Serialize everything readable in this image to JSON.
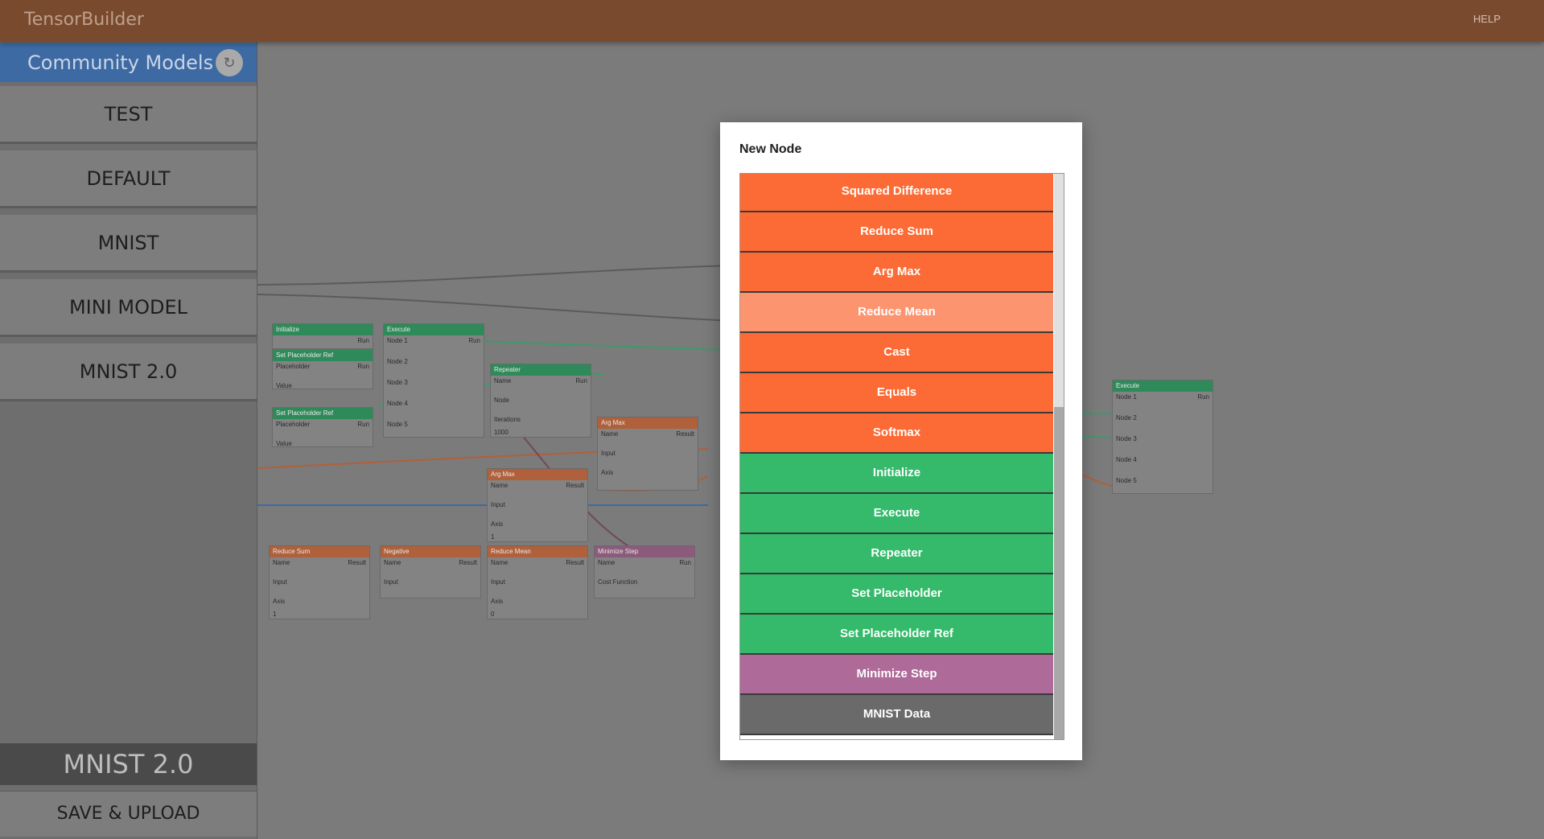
{
  "app": {
    "title": "TensorBuilder",
    "help_label": "HELP"
  },
  "sidebar": {
    "header_title": "Community Models",
    "refresh_icon": "↻",
    "models": [
      "TEST",
      "DEFAULT",
      "MNIST",
      "MINI MODEL",
      "MNIST 2.0"
    ],
    "current_model": "MNIST 2.0",
    "save_label": "SAVE & UPLOAD"
  },
  "modal": {
    "title": "New Node",
    "options": [
      {
        "label": "Squared Difference",
        "category": "math",
        "color": "#fc6b35"
      },
      {
        "label": "Reduce Sum",
        "category": "math",
        "color": "#fc6b35"
      },
      {
        "label": "Arg Max",
        "category": "math",
        "color": "#fc6b35"
      },
      {
        "label": "Reduce Mean",
        "category": "math",
        "color": "#fd9470",
        "hovered": true
      },
      {
        "label": "Cast",
        "category": "math",
        "color": "#fc6b35"
      },
      {
        "label": "Equals",
        "category": "math",
        "color": "#fc6b35"
      },
      {
        "label": "Softmax",
        "category": "math",
        "color": "#fc6b35"
      },
      {
        "label": "Initialize",
        "category": "control",
        "color": "#34ba6a"
      },
      {
        "label": "Execute",
        "category": "control",
        "color": "#34ba6a"
      },
      {
        "label": "Repeater",
        "category": "control",
        "color": "#34ba6a"
      },
      {
        "label": "Set Placeholder",
        "category": "control",
        "color": "#34ba6a"
      },
      {
        "label": "Set Placeholder Ref",
        "category": "control",
        "color": "#34ba6a"
      },
      {
        "label": "Minimize Step",
        "category": "training",
        "color": "#ae6a98"
      },
      {
        "label": "MNIST Data",
        "category": "data",
        "color": "#6a6a6a"
      }
    ]
  },
  "graph": {
    "nodes": [
      {
        "title": "Initialize",
        "color": "green",
        "rows": [
          [
            "",
            "Run"
          ]
        ]
      },
      {
        "title": "Set Placeholder Ref",
        "color": "green",
        "rows": [
          [
            "Placeholder",
            "Run"
          ],
          [
            "Value",
            ""
          ]
        ]
      },
      {
        "title": "Set Placeholder Ref",
        "color": "green",
        "rows": [
          [
            "Placeholder",
            "Run"
          ],
          [
            "Value",
            ""
          ]
        ]
      },
      {
        "title": "Execute",
        "color": "green",
        "rows": [
          [
            "Node 1",
            "Run"
          ],
          [
            "Node 2",
            ""
          ],
          [
            "Node 3",
            ""
          ],
          [
            "Node 4",
            ""
          ],
          [
            "Node 5",
            ""
          ]
        ]
      },
      {
        "title": "Repeater",
        "color": "green",
        "rows": [
          [
            "Name",
            "Run"
          ],
          [
            "Node",
            ""
          ],
          [
            "Iterations",
            ""
          ],
          [
            "1000",
            ""
          ]
        ]
      },
      {
        "title": "Arg Max",
        "color": "orange",
        "rows": [
          [
            "Name",
            "Result"
          ],
          [
            "Input",
            ""
          ],
          [
            "Axis",
            ""
          ]
        ]
      },
      {
        "title": "Arg Max",
        "color": "orange",
        "rows": [
          [
            "Name",
            "Result"
          ],
          [
            "Input",
            ""
          ],
          [
            "Axis",
            ""
          ],
          [
            "1",
            ""
          ]
        ]
      },
      {
        "title": "Reduce Sum",
        "color": "orange",
        "rows": [
          [
            "Name",
            "Result"
          ],
          [
            "Input",
            ""
          ],
          [
            "Axis",
            ""
          ],
          [
            "1",
            ""
          ]
        ]
      },
      {
        "title": "Negative",
        "color": "orange",
        "rows": [
          [
            "Name",
            "Result"
          ],
          [
            "Input",
            ""
          ]
        ]
      },
      {
        "title": "Reduce Mean",
        "color": "orange",
        "rows": [
          [
            "Name",
            "Result"
          ],
          [
            "Input",
            ""
          ],
          [
            "Axis",
            ""
          ],
          [
            "0",
            ""
          ]
        ]
      },
      {
        "title": "Minimize Step",
        "color": "purple",
        "rows": [
          [
            "Name",
            "Run"
          ],
          [
            "Cost Function",
            ""
          ]
        ]
      },
      {
        "title": "Execute",
        "color": "green",
        "rows": [
          [
            "Node 1",
            "Run"
          ],
          [
            "Node 2",
            ""
          ],
          [
            "Node 3",
            ""
          ],
          [
            "Node 4",
            ""
          ],
          [
            "Node 5",
            ""
          ]
        ]
      }
    ]
  }
}
